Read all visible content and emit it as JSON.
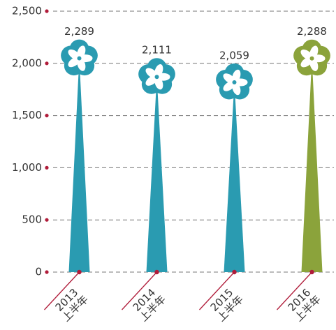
{
  "chart_data": {
    "type": "flower-bar",
    "categories": [
      "2013\n上半年",
      "2014\n上半年",
      "2015\n上半年",
      "2016\n上半年"
    ],
    "values": [
      2289,
      2111,
      2059,
      2288
    ],
    "value_labels": [
      "2,289",
      "2,111",
      "2,059",
      "2,288"
    ],
    "colors": [
      "#2a9bb1",
      "#2a9bb1",
      "#2a9bb1",
      "#8ba33b"
    ],
    "ylim": [
      0,
      2500
    ],
    "yticks": [
      0,
      500,
      {
        "value": 1000,
        "label": "1,000"
      },
      {
        "value": 1500,
        "label": "1,500"
      },
      {
        "value": 2000,
        "label": "2,000"
      },
      {
        "value": 2500,
        "label": "2,500"
      }
    ],
    "grid": true
  }
}
